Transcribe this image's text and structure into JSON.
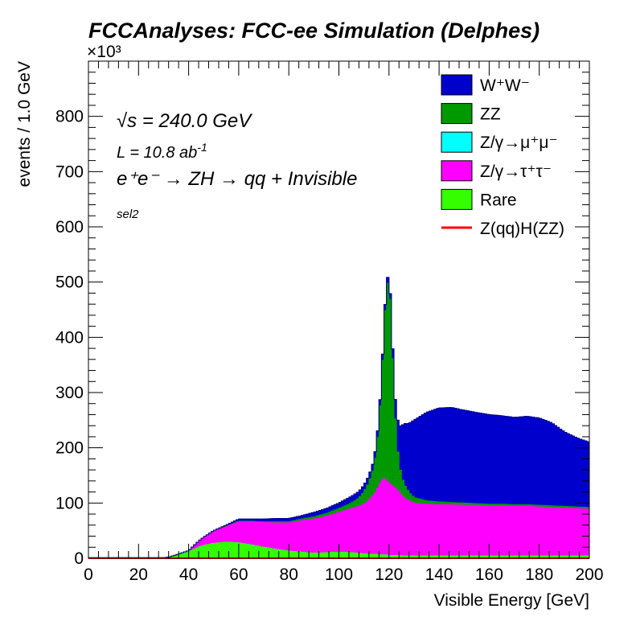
{
  "title": "FCCAnalyses: FCC-ee Simulation (Delphes)",
  "annotations": {
    "energy": "√s = 240.0 GeV",
    "lumi": "L = 10.8 ab",
    "lumi_sup": "-1",
    "process": "e⁺e⁻ → ZH → qq + Invisible",
    "selection": "sel2"
  },
  "colors": {
    "ww": "#0000cc",
    "zz": "#009900",
    "zmumu": "#00ffff",
    "ztautau": "#ff00ff",
    "rare": "#33ff00",
    "signal": "#ff0000",
    "frame": "#000000"
  },
  "chart_data": {
    "type": "area",
    "style": "stacked-step-histogram",
    "xlabel": "Visible Energy [GeV]",
    "ylabel": "events / 1.0 GeV",
    "y_multiplier": "×10³",
    "xlim": [
      0,
      200
    ],
    "ylim": [
      0,
      900
    ],
    "x_ticks": [
      "0",
      "20",
      "40",
      "60",
      "80",
      "100",
      "120",
      "140",
      "160",
      "180",
      "200"
    ],
    "y_ticks": [
      "0",
      "100",
      "200",
      "300",
      "400",
      "500",
      "600",
      "700",
      "800"
    ],
    "grid": false,
    "legend_position": "top-right",
    "stack_order": [
      "rare",
      "zmumu",
      "ztautau",
      "zz",
      "ww"
    ],
    "x": [
      0,
      10,
      20,
      30,
      32,
      35,
      40,
      45,
      50,
      55,
      60,
      65,
      70,
      75,
      80,
      85,
      90,
      95,
      100,
      105,
      108,
      110,
      112,
      114,
      115,
      116,
      117,
      118,
      119,
      120,
      121,
      122,
      123,
      124,
      125,
      126,
      128,
      130,
      135,
      140,
      145,
      150,
      155,
      160,
      165,
      170,
      175,
      180,
      185,
      190,
      195,
      200
    ],
    "series": [
      {
        "key": "ww",
        "name": "W⁺W⁻",
        "values": [
          0,
          0,
          0,
          0,
          0,
          0,
          0,
          0,
          0,
          2,
          4,
          4,
          5,
          6,
          6,
          6,
          8,
          9,
          10,
          12,
          12,
          12,
          12,
          12,
          12,
          11,
          11,
          11,
          11,
          10,
          10,
          25,
          45,
          70,
          90,
          110,
          125,
          140,
          160,
          170,
          172,
          168,
          165,
          162,
          160,
          158,
          160,
          158,
          150,
          135,
          125,
          118
        ]
      },
      {
        "key": "zz",
        "name": "ZZ",
        "values": [
          0,
          0,
          0,
          0,
          0,
          0,
          0,
          1,
          1,
          1,
          1,
          1,
          1,
          2,
          2,
          3,
          4,
          5,
          7,
          10,
          15,
          22,
          32,
          50,
          75,
          110,
          170,
          260,
          350,
          370,
          300,
          160,
          90,
          50,
          35,
          25,
          15,
          10,
          6,
          5,
          4,
          4,
          3,
          3,
          3,
          3,
          3,
          3,
          3,
          3,
          3,
          3
        ]
      },
      {
        "key": "zmumu",
        "name": "Z/γ→μ⁺μ⁻",
        "values": [
          0,
          0,
          0,
          0,
          0,
          0,
          0,
          0,
          0,
          0,
          0,
          0,
          0,
          0,
          0,
          0,
          0,
          0,
          0,
          0,
          0,
          0,
          0,
          0,
          0,
          0,
          0,
          0,
          0,
          0,
          0,
          0,
          0,
          0,
          0,
          0,
          0,
          0,
          0,
          0,
          0,
          0,
          0,
          0,
          0,
          0,
          0,
          0,
          0,
          0,
          0,
          0
        ]
      },
      {
        "key": "ztautau",
        "name": "Z/γ→τ⁺τ⁻",
        "values": [
          0,
          0,
          0,
          0,
          0,
          1,
          2,
          12,
          22,
          28,
          38,
          42,
          45,
          48,
          51,
          57,
          62,
          66,
          72,
          80,
          85,
          90,
          98,
          108,
          115,
          125,
          135,
          140,
          135,
          130,
          128,
          125,
          120,
          115,
          110,
          105,
          100,
          96,
          94,
          93,
          93,
          92,
          92,
          91,
          91,
          90,
          90,
          89,
          88,
          87,
          86,
          85
        ]
      },
      {
        "key": "rare",
        "name": "Rare",
        "values": [
          1,
          1,
          1,
          1,
          2,
          5,
          12,
          22,
          27,
          29,
          28,
          24,
          20,
          16,
          13,
          11,
          9,
          10,
          11,
          10,
          9,
          8,
          7,
          7,
          7,
          6,
          6,
          6,
          6,
          5,
          5,
          5,
          5,
          5,
          4,
          4,
          4,
          4,
          4,
          4,
          4,
          4,
          4,
          4,
          4,
          4,
          4,
          4,
          4,
          4,
          4,
          4
        ]
      }
    ],
    "signal": {
      "key": "signal",
      "name": "Z(qq)H(ZZ)",
      "style": "line",
      "values": [
        0,
        0,
        0,
        0,
        0,
        0,
        0,
        0,
        0,
        0,
        0,
        0,
        0,
        0,
        0,
        0,
        0,
        0,
        0,
        0,
        0,
        0,
        0,
        0,
        0,
        0,
        0,
        0,
        0,
        0,
        0,
        0,
        0,
        0,
        0,
        0,
        0,
        0,
        0,
        0,
        0,
        0,
        0,
        0,
        0,
        0,
        0,
        0,
        0,
        0,
        0,
        0
      ]
    },
    "legend": [
      {
        "key": "ww",
        "label": "W⁺W⁻",
        "kind": "box"
      },
      {
        "key": "zz",
        "label": "ZZ",
        "kind": "box"
      },
      {
        "key": "zmumu",
        "label": "Z/γ→μ⁺μ⁻",
        "kind": "box"
      },
      {
        "key": "ztautau",
        "label": "Z/γ→τ⁺τ⁻",
        "kind": "box"
      },
      {
        "key": "rare",
        "label": "Rare",
        "kind": "box"
      },
      {
        "key": "signal",
        "label": "Z(qq)H(ZZ)",
        "kind": "line"
      }
    ]
  }
}
